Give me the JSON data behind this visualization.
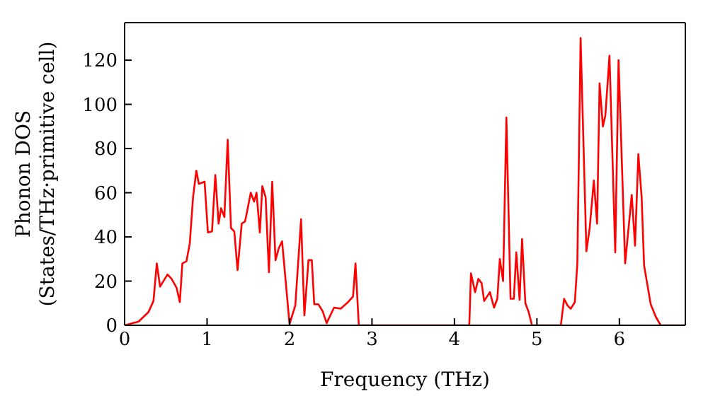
{
  "chart_data": {
    "type": "line",
    "xlabel": "Frequency (THz)",
    "ylabel": "Phonon DOS\n(States/THz·primitive cell)",
    "x": [
      0,
      0.17,
      0.29,
      0.35,
      0.39,
      0.43,
      0.52,
      0.57,
      0.63,
      0.67,
      0.7,
      0.75,
      0.79,
      0.83,
      0.87,
      0.9,
      0.97,
      1.01,
      1.06,
      1.1,
      1.14,
      1.17,
      1.21,
      1.25,
      1.29,
      1.33,
      1.37,
      1.42,
      1.46,
      1.48,
      1.53,
      1.57,
      1.6,
      1.64,
      1.67,
      1.71,
      1.75,
      1.79,
      1.83,
      1.87,
      1.91,
      2.0,
      2.07,
      2.14,
      2.18,
      2.23,
      2.27,
      2.3,
      2.35,
      2.4,
      2.45,
      2.54,
      2.62,
      2.71,
      2.77,
      2.8,
      2.84,
      4.18,
      4.2,
      4.25,
      4.29,
      4.33,
      4.36,
      4.43,
      4.48,
      4.52,
      4.55,
      4.59,
      4.63,
      4.68,
      4.72,
      4.75,
      4.79,
      4.82,
      4.86,
      4.9,
      4.94,
      5.29,
      5.33,
      5.37,
      5.41,
      5.46,
      5.49,
      5.53,
      5.6,
      5.64,
      5.69,
      5.73,
      5.76,
      5.8,
      5.83,
      5.88,
      5.95,
      5.99,
      6.07,
      6.15,
      6.19,
      6.23,
      6.27,
      6.3,
      6.38,
      6.44,
      6.5,
      6.8
    ],
    "series": [
      {
        "color": "#ff0000",
        "values": [
          0,
          1.7,
          6,
          11,
          28,
          17.5,
          23,
          21,
          17,
          10.5,
          28,
          29,
          37,
          58,
          70,
          64,
          65,
          42,
          42.5,
          68,
          46,
          53,
          49,
          84,
          44,
          42.5,
          25,
          46,
          47,
          50.5,
          60,
          56,
          60,
          42,
          63,
          58,
          24,
          65,
          29.5,
          35,
          38,
          0.5,
          9,
          48,
          4.5,
          29.5,
          29.5,
          9.5,
          9.5,
          6.5,
          1,
          8,
          7.5,
          10.5,
          13,
          28,
          0,
          0,
          23.5,
          15,
          21,
          19,
          11,
          15,
          8,
          12,
          30,
          20,
          94,
          12,
          12,
          33,
          11.5,
          39,
          10,
          6,
          0,
          0,
          12,
          9,
          7.5,
          10.5,
          28,
          130,
          33.5,
          44,
          65.5,
          46,
          109.5,
          90,
          95,
          122,
          33,
          120,
          28,
          59,
          36,
          77.5,
          58,
          27,
          9.5,
          4,
          0,
          0
        ]
      }
    ],
    "xlim": [
      0,
      6.8
    ],
    "xticks": [
      0,
      1,
      2,
      3,
      4,
      5,
      6
    ],
    "ylim": [
      0,
      137
    ],
    "yticks": [
      0,
      20,
      40,
      60,
      80,
      100,
      120
    ],
    "marker": "none",
    "line_style": "solid"
  }
}
